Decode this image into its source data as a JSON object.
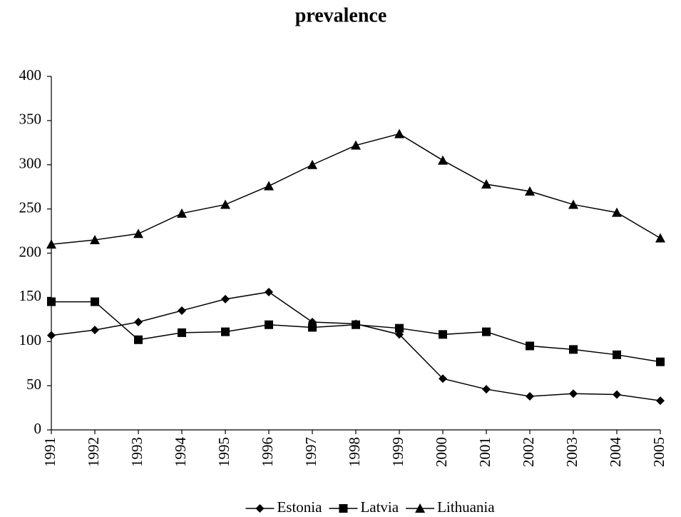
{
  "chart_data": {
    "type": "line",
    "title": "prevalence",
    "categories": [
      "1991",
      "1992",
      "1993",
      "1994",
      "1995",
      "1996",
      "1997",
      "1998",
      "1999",
      "2000",
      "2001",
      "2002",
      "2003",
      "2004",
      "2005"
    ],
    "series": [
      {
        "name": "Estonia",
        "color": "#000000",
        "marker": "diamond",
        "values": [
          107,
          113,
          122,
          135,
          148,
          156,
          122,
          120,
          108,
          58,
          46,
          38,
          41,
          40,
          33
        ]
      },
      {
        "name": "Latvia",
        "color": "#000000",
        "marker": "square",
        "values": [
          145,
          145,
          102,
          110,
          111,
          119,
          116,
          119,
          115,
          108,
          111,
          95,
          91,
          85,
          77
        ]
      },
      {
        "name": "Lithuania",
        "color": "#000000",
        "marker": "triangle",
        "values": [
          210,
          215,
          222,
          245,
          255,
          276,
          300,
          322,
          335,
          305,
          278,
          270,
          255,
          246,
          217
        ]
      }
    ],
    "ylim": [
      0,
      400
    ],
    "yticks": [
      0,
      50,
      100,
      150,
      200,
      250,
      300,
      350,
      400
    ],
    "grid": false,
    "legend": "bottom"
  }
}
